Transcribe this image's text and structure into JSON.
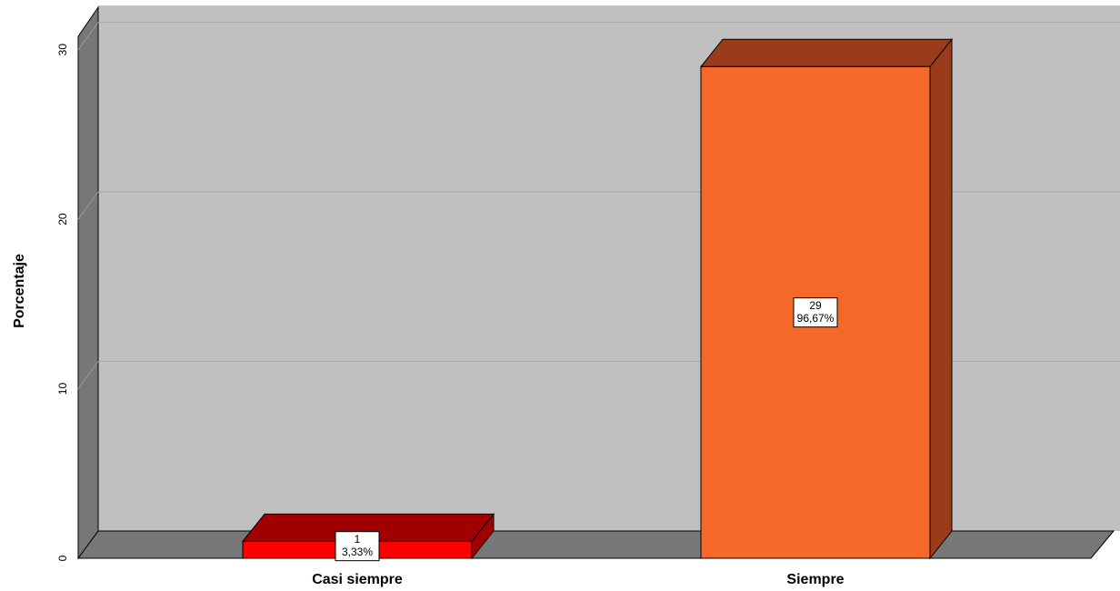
{
  "chart_data": {
    "type": "bar3d",
    "y_label": "Porcentaje",
    "categories": [
      "Casi siempre",
      "Siempre"
    ],
    "values": [
      1,
      29
    ],
    "percent_labels": [
      "3,33%",
      "96,67%"
    ],
    "colors": [
      "#ff0000",
      "#f4692a"
    ],
    "top_colors": [
      "#a00000",
      "#9a3c1b"
    ],
    "ylim": [
      0,
      31
    ],
    "yticks": [
      0,
      10,
      20,
      30
    ],
    "grid": true
  }
}
